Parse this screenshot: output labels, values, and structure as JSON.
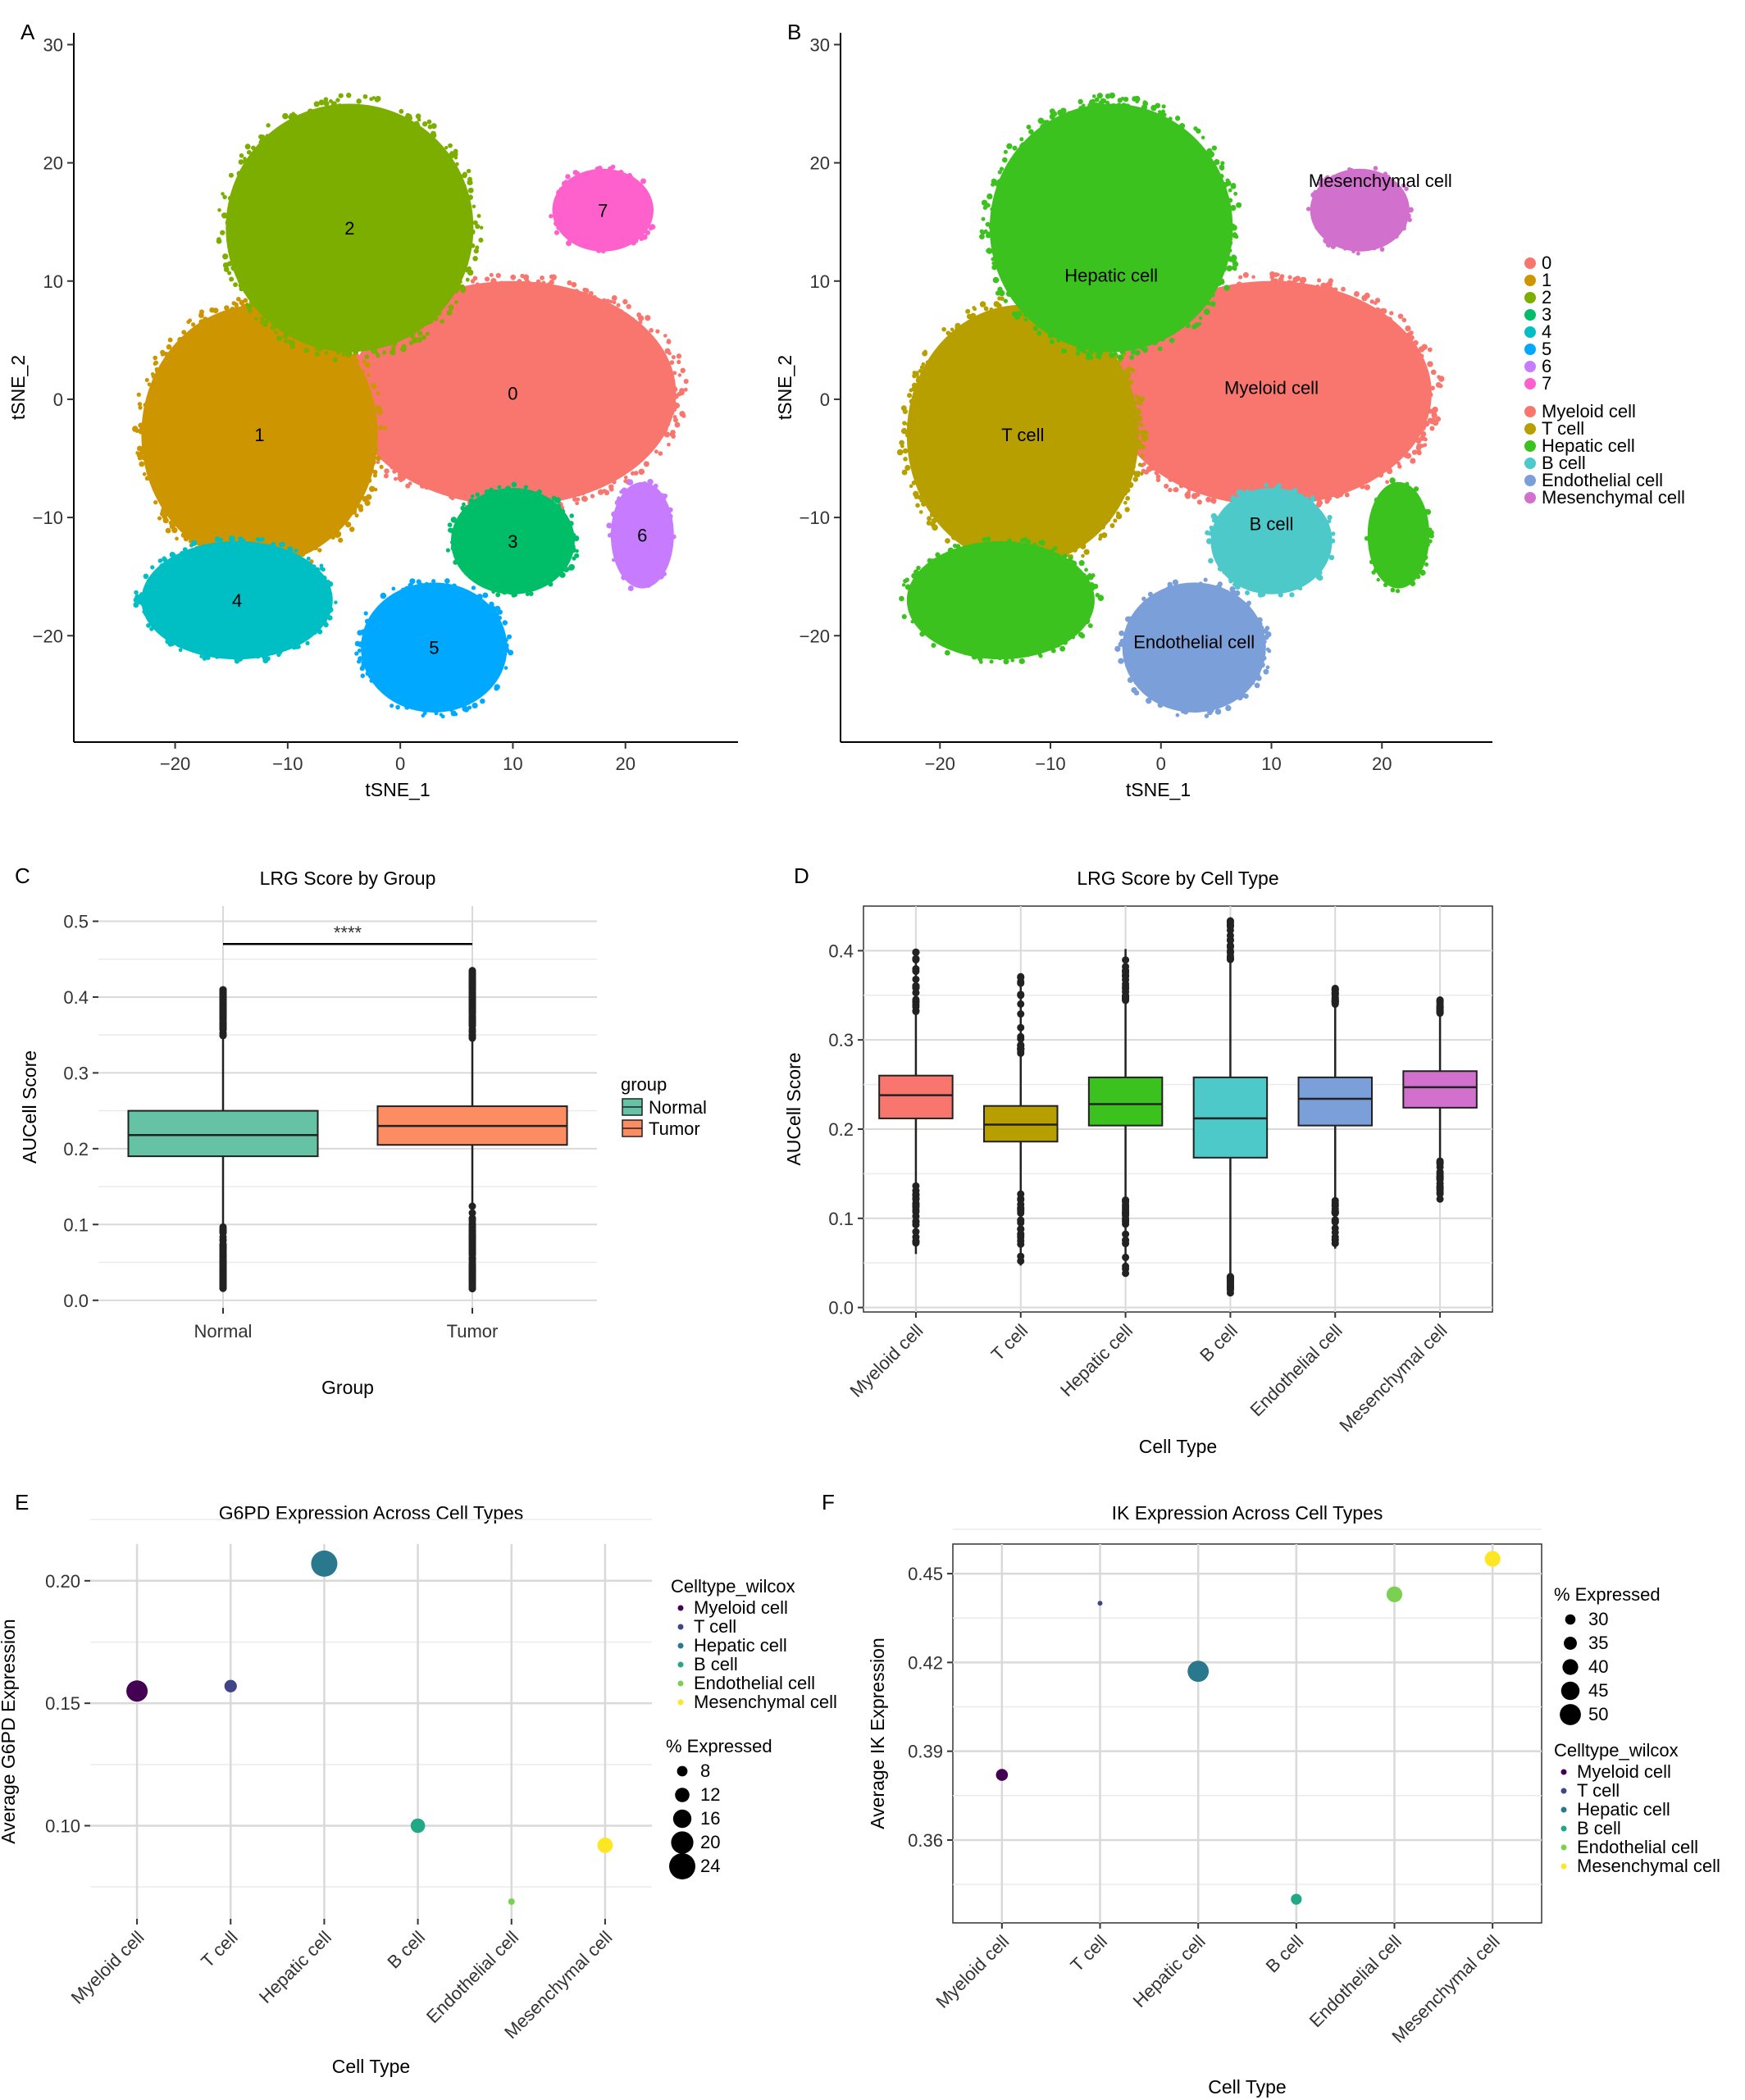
{
  "panel_letters": [
    "A",
    "B",
    "C",
    "D",
    "E",
    "F"
  ],
  "chart_data": [
    {
      "panel": "A",
      "type": "scatter",
      "xlabel": "tSNE_1",
      "ylabel": "tSNE_2",
      "xlim": [
        -29,
        30
      ],
      "ylim": [
        -29,
        31
      ],
      "xticks": [
        -20,
        -10,
        0,
        10,
        20
      ],
      "yticks": [
        30,
        20,
        10,
        0,
        -10,
        -20
      ],
      "grid": false,
      "clusters": [
        {
          "label": "0",
          "x": 10,
          "y": 0.5,
          "rx": 14.5,
          "ry": 9.5,
          "color": "#F8766D"
        },
        {
          "label": "1",
          "x": -12.5,
          "y": -3,
          "rx": 10.5,
          "ry": 11,
          "color": "#CD9600"
        },
        {
          "label": "2",
          "x": -4.5,
          "y": 14.5,
          "rx": 11,
          "ry": 10.5,
          "color": "#7CAE00"
        },
        {
          "label": "3",
          "x": 10,
          "y": -12,
          "rx": 5.5,
          "ry": 4.5,
          "color": "#00BE67"
        },
        {
          "label": "4",
          "x": -14.5,
          "y": -17,
          "rx": 8.5,
          "ry": 5,
          "color": "#00BFC4"
        },
        {
          "label": "5",
          "x": 3,
          "y": -21,
          "rx": 6.5,
          "ry": 5.5,
          "color": "#00A9FF"
        },
        {
          "label": "6",
          "x": 21.5,
          "y": -11.5,
          "rx": 2.8,
          "ry": 4.5,
          "color": "#C77CFF"
        },
        {
          "label": "7",
          "x": 18,
          "y": 16,
          "rx": 4.5,
          "ry": 3.5,
          "color": "#FF61CC"
        }
      ]
    },
    {
      "panel": "B",
      "type": "scatter",
      "xlabel": "tSNE_1",
      "ylabel": "tSNE_2",
      "xlim": [
        -29,
        30
      ],
      "ylim": [
        -29,
        31
      ],
      "xticks": [
        -20,
        -10,
        0,
        10,
        20
      ],
      "yticks": [
        30,
        20,
        10,
        0,
        -10,
        -20
      ],
      "grid": false,
      "cell_labels": [
        "Mesenchymal cell",
        "Hepatic cell",
        "Myeloid cell",
        "T cell",
        "B cell",
        "Endothelial cell"
      ],
      "legend": {
        "position": "right",
        "entries": [
          {
            "label": "0",
            "color": "#F8766D"
          },
          {
            "label": "1",
            "color": "#CD9600"
          },
          {
            "label": "2",
            "color": "#7CAE00"
          },
          {
            "label": "3",
            "color": "#00BE67"
          },
          {
            "label": "4",
            "color": "#00BFC4"
          },
          {
            "label": "5",
            "color": "#00A9FF"
          },
          {
            "label": "6",
            "color": "#C77CFF"
          },
          {
            "label": "7",
            "color": "#FF61CC"
          },
          {
            "label": "Myeloid cell",
            "color": "#F8766D"
          },
          {
            "label": "T cell",
            "color": "#B79F00"
          },
          {
            "label": "Hepatic cell",
            "color": "#3CC21E"
          },
          {
            "label": "B cell",
            "color": "#4DC9CA"
          },
          {
            "label": "Endothelial cell",
            "color": "#7B9FD8"
          },
          {
            "label": "Mesenchymal cell",
            "color": "#D270CE"
          }
        ]
      }
    },
    {
      "panel": "C",
      "type": "box",
      "title": "LRG Score by Group",
      "xlabel": "Group",
      "ylabel": "AUCell Score",
      "categories": [
        "Normal",
        "Tumor"
      ],
      "ylim": [
        -0.01,
        0.52
      ],
      "yticks": [
        "0.0",
        "0.1",
        "0.2",
        "0.3",
        "0.4",
        "0.5"
      ],
      "boxes": [
        {
          "q1": 0.19,
          "median": 0.218,
          "q3": 0.25,
          "whisker_low": 0.1,
          "whisker_high": 0.34,
          "out_low": 0.015,
          "out_high": 0.41,
          "fill": "#66C2A5"
        },
        {
          "q1": 0.205,
          "median": 0.23,
          "q3": 0.256,
          "whisker_low": 0.13,
          "whisker_high": 0.33,
          "out_low": 0.015,
          "out_high": 0.435,
          "fill": "#FC8D62"
        }
      ],
      "significance": "****",
      "legend": {
        "title": "group",
        "entries": [
          "Normal",
          "Tumor"
        ]
      }
    },
    {
      "panel": "D",
      "type": "box",
      "title": "LRG Score by Cell Type",
      "xlabel": "Cell Type",
      "ylabel": "AUCell Score",
      "categories": [
        "Myeloid cell",
        "T cell",
        "Hepatic cell",
        "B cell",
        "Endothelial cell",
        "Mesenchymal cell"
      ],
      "ylim": [
        -0.005,
        0.45
      ],
      "yticks": [
        "0.0",
        "0.1",
        "0.2",
        "0.3",
        "0.4"
      ],
      "boxes": [
        {
          "q1": 0.212,
          "median": 0.238,
          "q3": 0.26,
          "whisker_low": 0.14,
          "whisker_high": 0.33,
          "out_low": 0.06,
          "out_high": 0.4,
          "fill": "#F8766D"
        },
        {
          "q1": 0.186,
          "median": 0.205,
          "q3": 0.226,
          "whisker_low": 0.13,
          "whisker_high": 0.285,
          "out_low": 0.047,
          "out_high": 0.372,
          "fill": "#B79F00"
        },
        {
          "q1": 0.204,
          "median": 0.228,
          "q3": 0.258,
          "whisker_low": 0.125,
          "whisker_high": 0.34,
          "out_low": 0.036,
          "out_high": 0.402,
          "fill": "#3CC21E"
        },
        {
          "q1": 0.168,
          "median": 0.212,
          "q3": 0.258,
          "whisker_low": 0.035,
          "whisker_high": 0.39,
          "out_low": 0.015,
          "out_high": 0.435,
          "fill": "#4DC9CA"
        },
        {
          "q1": 0.204,
          "median": 0.234,
          "q3": 0.258,
          "whisker_low": 0.12,
          "whisker_high": 0.34,
          "out_low": 0.066,
          "out_high": 0.358,
          "fill": "#7B9FD8"
        },
        {
          "q1": 0.224,
          "median": 0.247,
          "q3": 0.265,
          "whisker_low": 0.165,
          "whisker_high": 0.33,
          "out_low": 0.12,
          "out_high": 0.345,
          "fill": "#D270CE"
        }
      ]
    },
    {
      "panel": "E",
      "type": "scatter",
      "title": "G6PD Expression Across Cell Types",
      "xlabel": "Cell Type",
      "ylabel": "Average G6PD Expression",
      "categories": [
        "Myeloid cell",
        "T cell",
        "Hepatic cell",
        "B cell",
        "Endothelial cell",
        "Mesenchymal cell"
      ],
      "ylim": [
        0.062,
        0.215
      ],
      "yticks": [
        "0.20",
        "0.15",
        "0.10"
      ],
      "points": [
        {
          "category": "Myeloid cell",
          "value": 0.155,
          "pct_expressed": 19,
          "color": "#440154"
        },
        {
          "category": "T cell",
          "value": 0.157,
          "pct_expressed": 10,
          "color": "#414487"
        },
        {
          "category": "Hepatic cell",
          "value": 0.207,
          "pct_expressed": 24,
          "color": "#2A788E"
        },
        {
          "category": "B cell",
          "value": 0.1,
          "pct_expressed": 12,
          "color": "#22A884"
        },
        {
          "category": "Endothelial cell",
          "value": 0.069,
          "pct_expressed": 4,
          "color": "#7AD151"
        },
        {
          "category": "Mesenchymal cell",
          "value": 0.092,
          "pct_expressed": 13,
          "color": "#FDE725"
        }
      ],
      "legend_color": {
        "title": "Celltype_wilcox",
        "entries": [
          "Myeloid cell",
          "T cell",
          "Hepatic cell",
          "B cell",
          "Endothelial cell",
          "Mesenchymal cell"
        ]
      },
      "legend_size": {
        "title": "% Expressed",
        "entries": [
          "8",
          "12",
          "16",
          "20",
          "24"
        ]
      }
    },
    {
      "panel": "F",
      "type": "scatter",
      "title": "IK Expression Across Cell Types",
      "xlabel": "Cell Type",
      "ylabel": "Average IK Expression",
      "categories": [
        "Myeloid cell",
        "T cell",
        "Hepatic cell",
        "B cell",
        "Endothelial cell",
        "Mesenchymal cell"
      ],
      "ylim": [
        0.332,
        0.46
      ],
      "yticks": [
        "0.45",
        "0.42",
        "0.39",
        "0.36"
      ],
      "points": [
        {
          "category": "Myeloid cell",
          "value": 0.382,
          "pct_expressed": 33,
          "color": "#440154"
        },
        {
          "category": "T cell",
          "value": 0.44,
          "pct_expressed": 20,
          "color": "#414487"
        },
        {
          "category": "Hepatic cell",
          "value": 0.417,
          "pct_expressed": 50,
          "color": "#2A788E"
        },
        {
          "category": "B cell",
          "value": 0.34,
          "pct_expressed": 31,
          "color": "#22A884"
        },
        {
          "category": "Endothelial cell",
          "value": 0.443,
          "pct_expressed": 40,
          "color": "#7AD151"
        },
        {
          "category": "Mesenchymal cell",
          "value": 0.455,
          "pct_expressed": 40,
          "color": "#FDE725"
        }
      ],
      "legend_size": {
        "title": "% Expressed",
        "entries": [
          "30",
          "35",
          "40",
          "45",
          "50"
        ]
      },
      "legend_color": {
        "title": "Celltype_wilcox",
        "entries": [
          "Myeloid cell",
          "T cell",
          "Hepatic cell",
          "B cell",
          "Endothelial cell",
          "Mesenchymal cell"
        ]
      }
    }
  ]
}
